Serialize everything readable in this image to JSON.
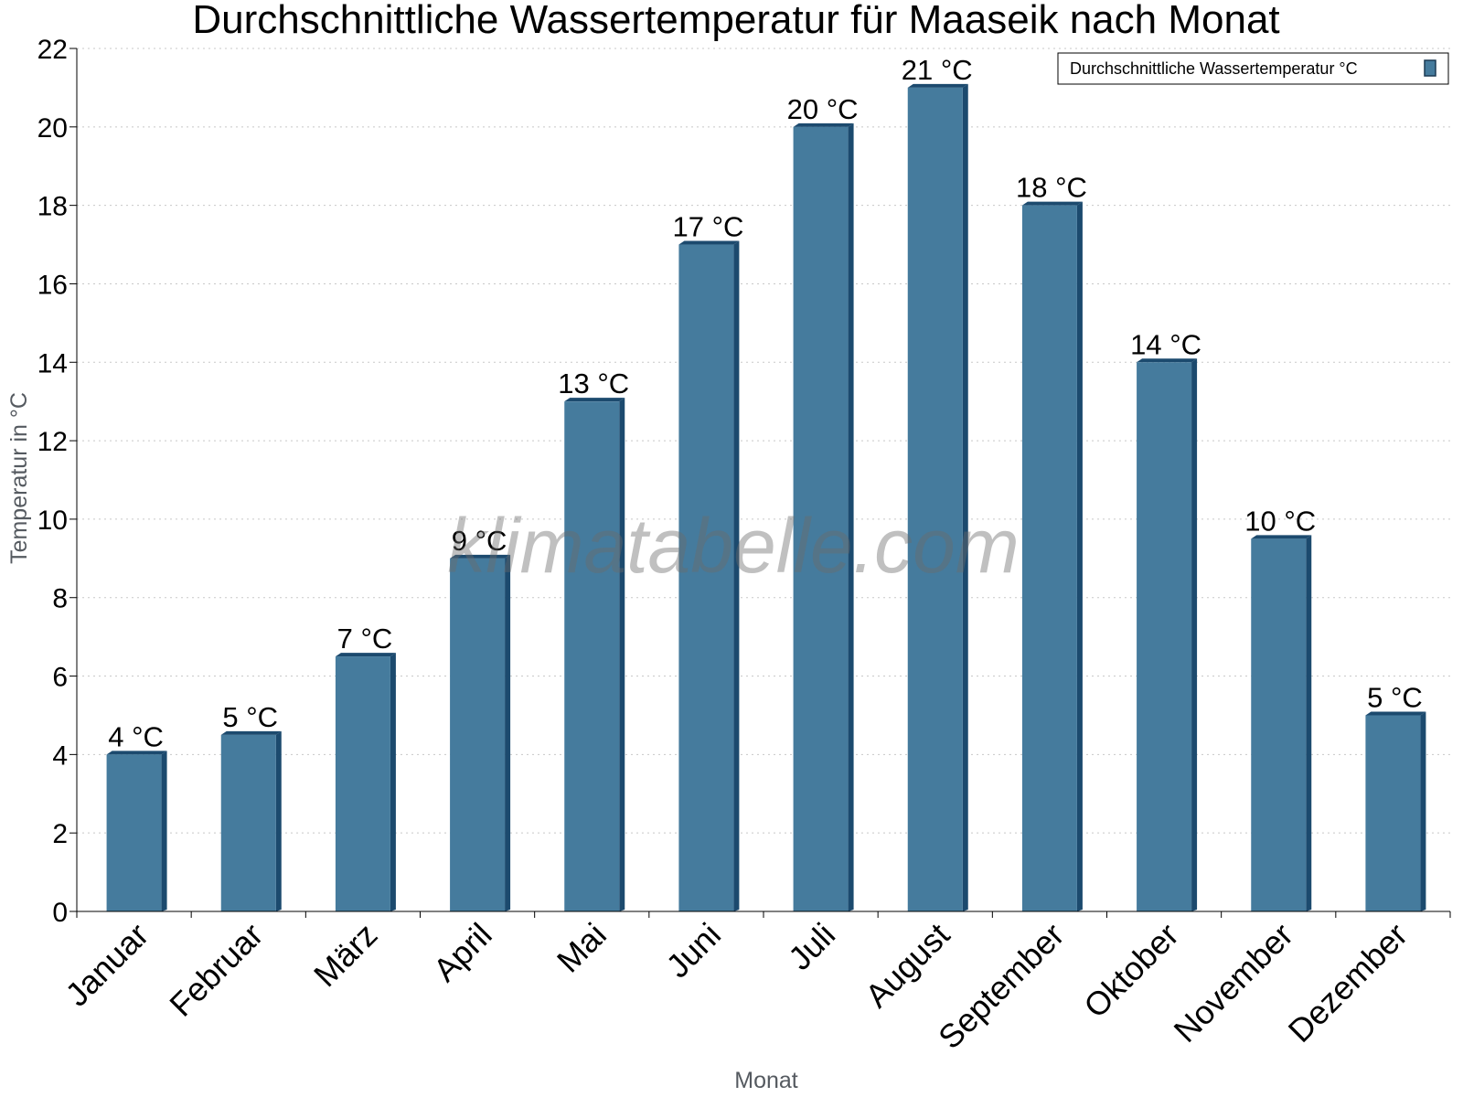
{
  "chart_data": {
    "type": "bar",
    "title": "Durchschnittliche Wassertemperatur für Maaseik nach Monat",
    "xlabel": "Monat",
    "ylabel": "Temperatur in °C",
    "ylim": [
      0,
      22
    ],
    "yticks": [
      0,
      2,
      4,
      6,
      8,
      10,
      12,
      14,
      16,
      18,
      20,
      22
    ],
    "grid": true,
    "legend_position": "top-right",
    "watermark": "klimatabelle.com",
    "categories": [
      "Januar",
      "Februar",
      "März",
      "April",
      "Mai",
      "Juni",
      "Juli",
      "August",
      "September",
      "Oktober",
      "November",
      "Dezember"
    ],
    "series": [
      {
        "name": "Durchschnittliche Wassertemperatur °C",
        "color": "#457b9d",
        "values": [
          4,
          4.5,
          6.5,
          9,
          13,
          17,
          20,
          21,
          18,
          14,
          9.5,
          5
        ],
        "labels": [
          "4 °C",
          "5 °C",
          "7 °C",
          "9 °C",
          "13 °C",
          "17 °C",
          "20 °C",
          "21 °C",
          "18 °C",
          "14 °C",
          "10 °C",
          "5 °C"
        ]
      }
    ]
  }
}
